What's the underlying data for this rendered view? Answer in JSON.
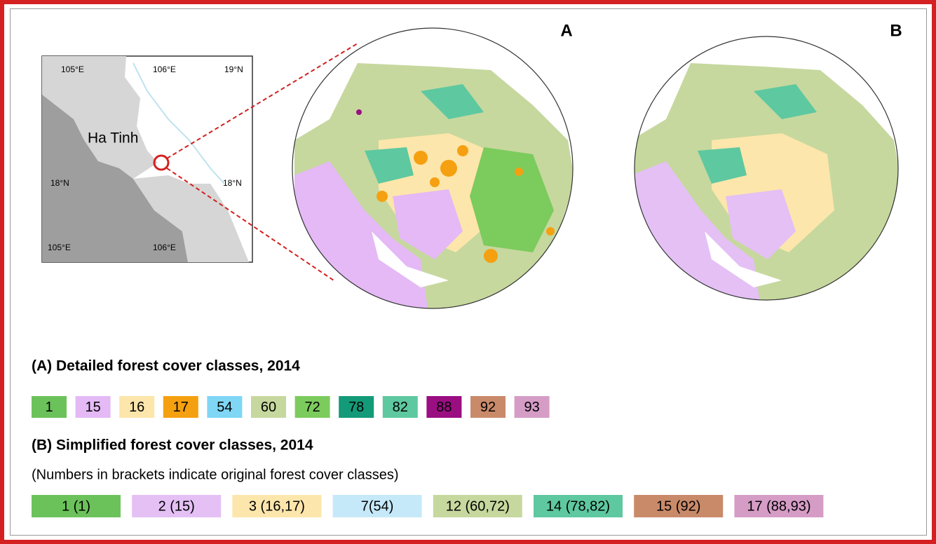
{
  "inset_map": {
    "labels": {
      "lon_top_left": "105°E",
      "lon_top_right": "106°E",
      "lat_top": "19°N",
      "province": "Ha Tinh",
      "lat_left": "18°N",
      "lat_right": "18°N",
      "lon_bottom_left": "105°E",
      "lon_bottom_right": "106°E"
    }
  },
  "panels": {
    "a": "A",
    "b": "B"
  },
  "legend_a": {
    "title": "(A) Detailed forest cover classes, 2014",
    "items": [
      {
        "label": "1",
        "color": "#6cc25a"
      },
      {
        "label": "15",
        "color": "#e4b9f5"
      },
      {
        "label": "16",
        "color": "#fde6ab"
      },
      {
        "label": "17",
        "color": "#f5a010"
      },
      {
        "label": "54",
        "color": "#7fd6f5"
      },
      {
        "label": "60",
        "color": "#c6d89e"
      },
      {
        "label": "72",
        "color": "#7ccb5d"
      },
      {
        "label": "78",
        "color": "#139a78"
      },
      {
        "label": "82",
        "color": "#5ec8a0"
      },
      {
        "label": "88",
        "color": "#9a0e82"
      },
      {
        "label": "92",
        "color": "#c98a6a"
      },
      {
        "label": "93",
        "color": "#d59cc6"
      }
    ]
  },
  "legend_b": {
    "title": "(B) Simplified forest cover classes, 2014",
    "note": "(Numbers in brackets indicate original forest cover classes)",
    "items": [
      {
        "label": "1 (1)",
        "color": "#6cc25a"
      },
      {
        "label": "2 (15)",
        "color": "#e4c0f5"
      },
      {
        "label": "3 (16,17)",
        "color": "#fde6ab"
      },
      {
        "label": "7(54)",
        "color": "#c6e9f9"
      },
      {
        "label": "12 (60,72)",
        "color": "#c6d89e"
      },
      {
        "label": "14 (78,82)",
        "color": "#5ec8a0"
      },
      {
        "label": "15 (92)",
        "color": "#c98a6a"
      },
      {
        "label": "17 (88,93)",
        "color": "#d59cc6"
      }
    ]
  }
}
